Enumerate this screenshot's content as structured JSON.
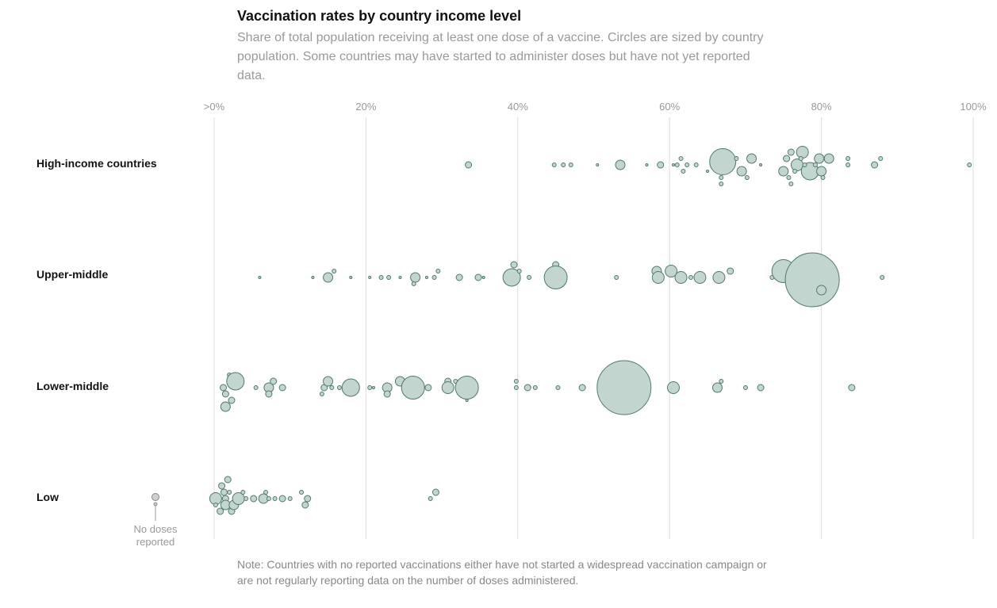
{
  "title": "Vaccination rates by country income level",
  "subtitle": "Share of total population receiving at least one dose of a vaccine. Circles are sized by country population. Some countries may have started to administer doses but have not yet reported data.",
  "note": "Note: Countries with no reported vaccinations either have not started a widespread vaccination campaign or are not regularly reporting data on the number of doses administered.",
  "no_doses_label": [
    "No doses",
    "reported"
  ],
  "colors": {
    "fill": "#c3d5cf",
    "stroke": "#4f7a6a",
    "nodose_fill": "#d0d0d0",
    "nodose_stroke": "#888888",
    "grid": "#dddddd"
  },
  "chart_data": {
    "type": "scatter",
    "xlim": [
      0,
      100
    ],
    "x_ticks": [
      {
        "value": 0,
        "label": ">0%"
      },
      {
        "value": 20,
        "label": "20%"
      },
      {
        "value": 40,
        "label": "40%"
      },
      {
        "value": 60,
        "label": "60%"
      },
      {
        "value": 80,
        "label": "80%"
      },
      {
        "value": 100,
        "label": "100%"
      }
    ],
    "groups": [
      {
        "name": "High-income countries",
        "points": [
          [
            33.5,
            0,
            "s"
          ],
          [
            44.8,
            0,
            "xs"
          ],
          [
            46,
            0,
            "xs"
          ],
          [
            47,
            0,
            "xs"
          ],
          [
            50.5,
            0,
            "xxs"
          ],
          [
            53.5,
            0,
            "m"
          ],
          [
            57,
            0,
            "xxs"
          ],
          [
            58.8,
            0,
            "s"
          ],
          [
            60.5,
            0,
            "xxs"
          ],
          [
            61,
            0,
            "xs"
          ],
          [
            61.5,
            -1,
            "xs"
          ],
          [
            61.8,
            1,
            "xs"
          ],
          [
            62.3,
            0,
            "xs"
          ],
          [
            63.5,
            0,
            "xs"
          ],
          [
            65,
            1,
            "xxs"
          ],
          [
            67,
            0,
            "xxl"
          ],
          [
            68.8,
            -1,
            "xs"
          ],
          [
            69.5,
            1,
            "m"
          ],
          [
            70.8,
            -1,
            "m"
          ],
          [
            72,
            0,
            "xxs"
          ],
          [
            70.2,
            2,
            "xs"
          ],
          [
            66.8,
            2,
            "xs"
          ],
          [
            66.8,
            3,
            "xs"
          ],
          [
            75,
            1,
            "m"
          ],
          [
            75.4,
            -1,
            "s"
          ],
          [
            76,
            -2,
            "s"
          ],
          [
            76.8,
            0,
            "ml"
          ],
          [
            77.5,
            -2,
            "ml"
          ],
          [
            78.5,
            1,
            "l"
          ],
          [
            77.3,
            -1,
            "xs"
          ],
          [
            77.8,
            0,
            "xs"
          ],
          [
            79.7,
            -1,
            "m"
          ],
          [
            80,
            1,
            "m"
          ],
          [
            80.2,
            2,
            "xs"
          ],
          [
            81,
            -1,
            "m"
          ],
          [
            79.2,
            0,
            "xs"
          ],
          [
            76.5,
            1,
            "xs"
          ],
          [
            75.7,
            2,
            "xs"
          ],
          [
            76,
            3,
            "xs"
          ],
          [
            83.5,
            -1,
            "xs"
          ],
          [
            83.5,
            0,
            "xs"
          ],
          [
            87,
            0,
            "s"
          ],
          [
            87.8,
            -1,
            "xs"
          ],
          [
            99.5,
            0,
            "xs"
          ]
        ]
      },
      {
        "name": "Upper-middle",
        "points": [
          [
            6,
            0,
            "xxs"
          ],
          [
            13,
            0,
            "xxs"
          ],
          [
            15,
            0,
            "m"
          ],
          [
            15.8,
            -1,
            "xs"
          ],
          [
            18,
            0,
            "xxs"
          ],
          [
            20.5,
            0,
            "xxs"
          ],
          [
            22,
            0,
            "xs"
          ],
          [
            23,
            0,
            "xs"
          ],
          [
            24.5,
            0,
            "xxs"
          ],
          [
            26.5,
            0,
            "m"
          ],
          [
            26.3,
            1,
            "xs"
          ],
          [
            28,
            0,
            "xxs"
          ],
          [
            29,
            0,
            "xs"
          ],
          [
            29.5,
            -1,
            "xs"
          ],
          [
            32.3,
            0,
            "s"
          ],
          [
            34.8,
            0,
            "s"
          ],
          [
            35.5,
            0,
            "xxs"
          ],
          [
            39.5,
            -2,
            "s"
          ],
          [
            39.2,
            0,
            "l"
          ],
          [
            40.2,
            -1,
            "xs"
          ],
          [
            41.5,
            0,
            "xs"
          ],
          [
            45,
            -2,
            "s"
          ],
          [
            45.7,
            -1,
            "xs"
          ],
          [
            45,
            0,
            "xl"
          ],
          [
            53,
            0,
            "xs"
          ],
          [
            58.3,
            -1,
            "m"
          ],
          [
            58.5,
            0,
            "ml"
          ],
          [
            60.2,
            -1,
            "ml"
          ],
          [
            61.5,
            0,
            "ml"
          ],
          [
            62.8,
            0,
            "xs"
          ],
          [
            64,
            0,
            "ml"
          ],
          [
            66.5,
            0,
            "ml"
          ],
          [
            68,
            -1,
            "s"
          ],
          [
            73.5,
            0,
            "xs"
          ],
          [
            74.2,
            0,
            "xs"
          ],
          [
            75,
            -1,
            "xl"
          ],
          [
            77,
            -2,
            "m"
          ],
          [
            78.8,
            0,
            "xxxl"
          ],
          [
            80,
            2,
            "m"
          ],
          [
            88,
            0,
            "xs"
          ]
        ]
      },
      {
        "name": "Lower-middle",
        "points": [
          [
            2,
            -2,
            "xs"
          ],
          [
            1.2,
            0,
            "s"
          ],
          [
            2.8,
            -1,
            "l"
          ],
          [
            5.5,
            0,
            "xs"
          ],
          [
            1.5,
            1,
            "s"
          ],
          [
            2.3,
            2,
            "s"
          ],
          [
            1.5,
            3,
            "m"
          ],
          [
            7.2,
            0,
            "m"
          ],
          [
            7.8,
            -1,
            "s"
          ],
          [
            9,
            0,
            "s"
          ],
          [
            7.2,
            1,
            "s"
          ],
          [
            14.5,
            0,
            "s"
          ],
          [
            15,
            -1,
            "m"
          ],
          [
            14.2,
            1,
            "xs"
          ],
          [
            15.5,
            0,
            "xs"
          ],
          [
            16.5,
            0,
            "xs"
          ],
          [
            18,
            0,
            "l"
          ],
          [
            20.5,
            0,
            "xs"
          ],
          [
            21,
            0,
            "xxs"
          ],
          [
            22.8,
            0,
            "m"
          ],
          [
            22.8,
            1,
            "s"
          ],
          [
            24.5,
            -1,
            "m"
          ],
          [
            26.2,
            0,
            "xl"
          ],
          [
            28.2,
            0,
            "s"
          ],
          [
            30.8,
            -1,
            "s"
          ],
          [
            30.8,
            0,
            "ml"
          ],
          [
            31.8,
            -1,
            "xs"
          ],
          [
            33.3,
            0,
            "xl"
          ],
          [
            33.3,
            2,
            "xxs"
          ],
          [
            39.8,
            0,
            "xs"
          ],
          [
            39.8,
            -1,
            "xs"
          ],
          [
            41.3,
            0,
            "s"
          ],
          [
            42.3,
            0,
            "xs"
          ],
          [
            45.3,
            0,
            "xs"
          ],
          [
            48.5,
            0,
            "s"
          ],
          [
            54,
            0,
            "xxxxl"
          ],
          [
            60.5,
            0,
            "ml"
          ],
          [
            66.3,
            0,
            "m"
          ],
          [
            66.8,
            -1,
            "xs"
          ],
          [
            70,
            0,
            "xs"
          ],
          [
            72,
            0,
            "s"
          ],
          [
            84,
            0,
            "s"
          ]
        ]
      },
      {
        "name": "Low",
        "points": [
          [
            0.2,
            0,
            "ml"
          ],
          [
            1,
            -2,
            "s"
          ],
          [
            1.3,
            -1,
            "s"
          ],
          [
            1.8,
            -3,
            "s"
          ],
          [
            2,
            -1,
            "xs"
          ],
          [
            1.5,
            0,
            "s"
          ],
          [
            1.5,
            1,
            "m"
          ],
          [
            0.2,
            1,
            "xs"
          ],
          [
            0.8,
            2,
            "s"
          ],
          [
            2.3,
            2,
            "s"
          ],
          [
            2.6,
            1,
            "m"
          ],
          [
            3.2,
            0,
            "ml"
          ],
          [
            3.8,
            -1,
            "xs"
          ],
          [
            4.2,
            0,
            "xs"
          ],
          [
            5.2,
            0,
            "s"
          ],
          [
            6.5,
            0,
            "m"
          ],
          [
            6.8,
            -1,
            "xs"
          ],
          [
            7.2,
            0,
            "xs"
          ],
          [
            8,
            0,
            "xs"
          ],
          [
            9,
            0,
            "s"
          ],
          [
            10,
            0,
            "xs"
          ],
          [
            11.5,
            -1,
            "xs"
          ],
          [
            12.3,
            0,
            "s"
          ],
          [
            12,
            1,
            "s"
          ],
          [
            28.5,
            0,
            "xs"
          ],
          [
            29.2,
            -1,
            "s"
          ]
        ]
      }
    ]
  }
}
